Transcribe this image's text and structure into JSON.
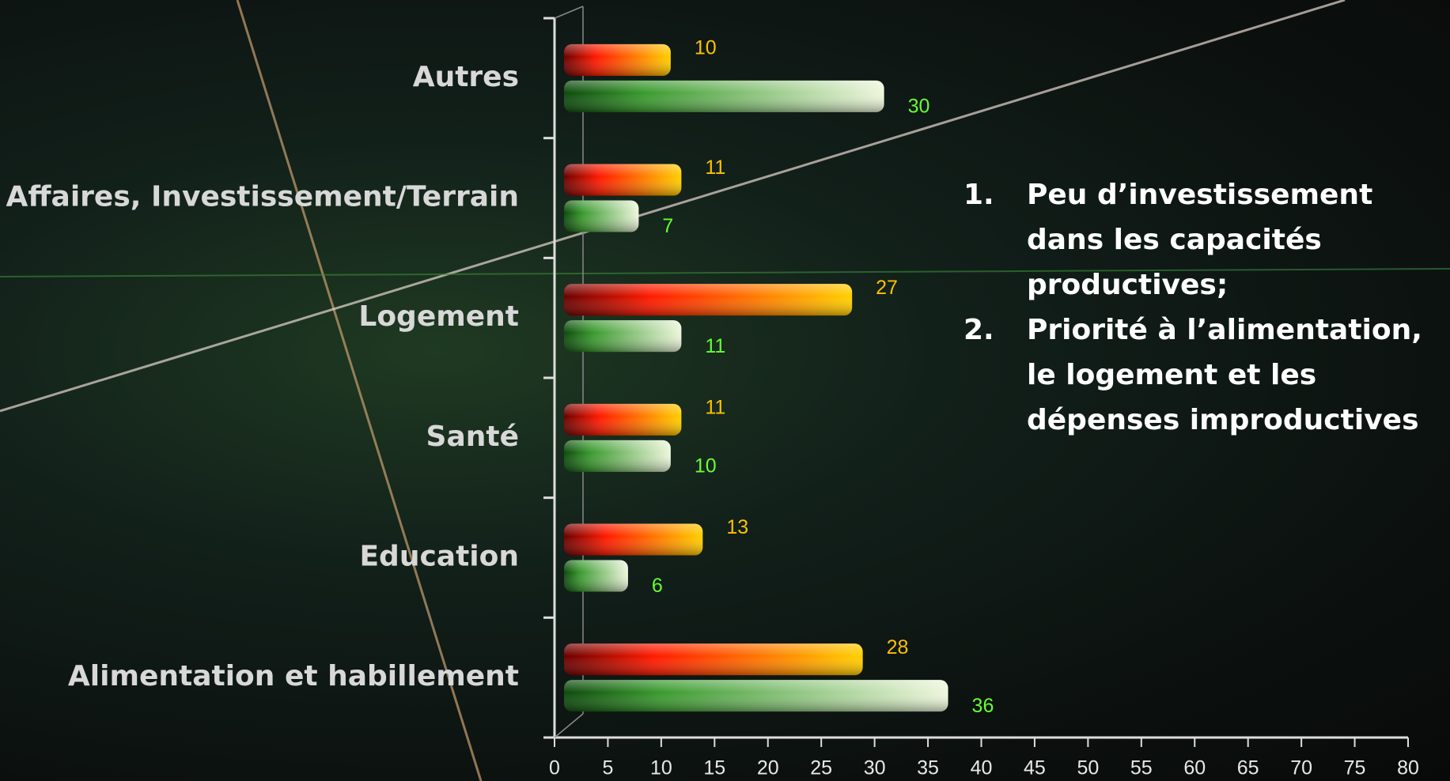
{
  "chart_data": {
    "type": "bar",
    "orientation": "horizontal",
    "categories": [
      "Autres",
      "Affaires, Investissement/Terrain",
      "Logement",
      "Santé",
      "Education",
      "Alimentation et habillement"
    ],
    "series": [
      {
        "color": "#ffc000",
        "values": [
          10,
          11,
          27,
          11,
          13,
          28
        ]
      },
      {
        "color": "#66ff33",
        "values": [
          30,
          7,
          11,
          10,
          6,
          36
        ]
      }
    ],
    "xlim": [
      0,
      80
    ],
    "xticks": [
      0,
      5,
      10,
      15,
      20,
      25,
      30,
      35,
      40,
      45,
      50,
      55,
      60,
      65,
      70,
      75,
      80
    ],
    "annotations": [
      {
        "label": "1.",
        "text": "Peu d’investissement dans les capacités productives;"
      },
      {
        "label": "2.",
        "text": "Priorité à l’alimentation, le logement et les dépenses improductives"
      }
    ]
  }
}
